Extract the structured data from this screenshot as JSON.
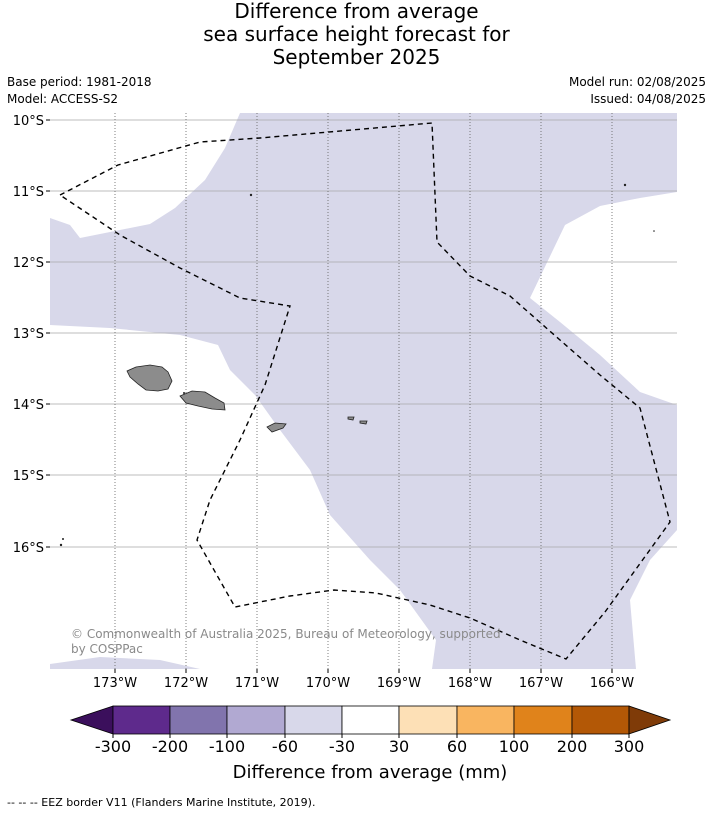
{
  "title": {
    "line1": "Difference from average",
    "line2": "sea surface height forecast for",
    "line3": "September 2025"
  },
  "meta": {
    "base_period": "Base period: 1981-2018",
    "model": "Model: ACCESS-S2",
    "model_run": "Model run: 02/08/2025",
    "issued": "Issued: 04/08/2025"
  },
  "map": {
    "lat_labels": [
      "10°S",
      "11°S",
      "12°S",
      "13°S",
      "14°S",
      "15°S",
      "16°S"
    ],
    "lon_labels": [
      "173°W",
      "172°W",
      "171°W",
      "170°W",
      "169°W",
      "168°W",
      "167°W",
      "166°W"
    ],
    "copyright_line1": "© Commonwealth of Australia 2025, Bureau of Meteorology, supported",
    "copyright_line2": "by COSPPac",
    "colors": {
      "band_-60_-30": "#d8d8ea",
      "land": "#888888",
      "grid": "#b0b0b0",
      "eez": "#000000"
    }
  },
  "colorbar": {
    "title": "Difference from average (mm)",
    "ticks": [
      "-300",
      "-200",
      "-100",
      "-60",
      "-30",
      "30",
      "60",
      "100",
      "200",
      "300"
    ],
    "colors": [
      "#3b0f5c",
      "#5e2a8c",
      "#8174ad",
      "#b1a9d2",
      "#d8d8ea",
      "#ffffff",
      "#fde0b6",
      "#f9b560",
      "#e0831b",
      "#b35806",
      "#7f3b08"
    ]
  },
  "footer": "-- -- -- EEZ border V11 (Flanders Marine Institute, 2019)."
}
